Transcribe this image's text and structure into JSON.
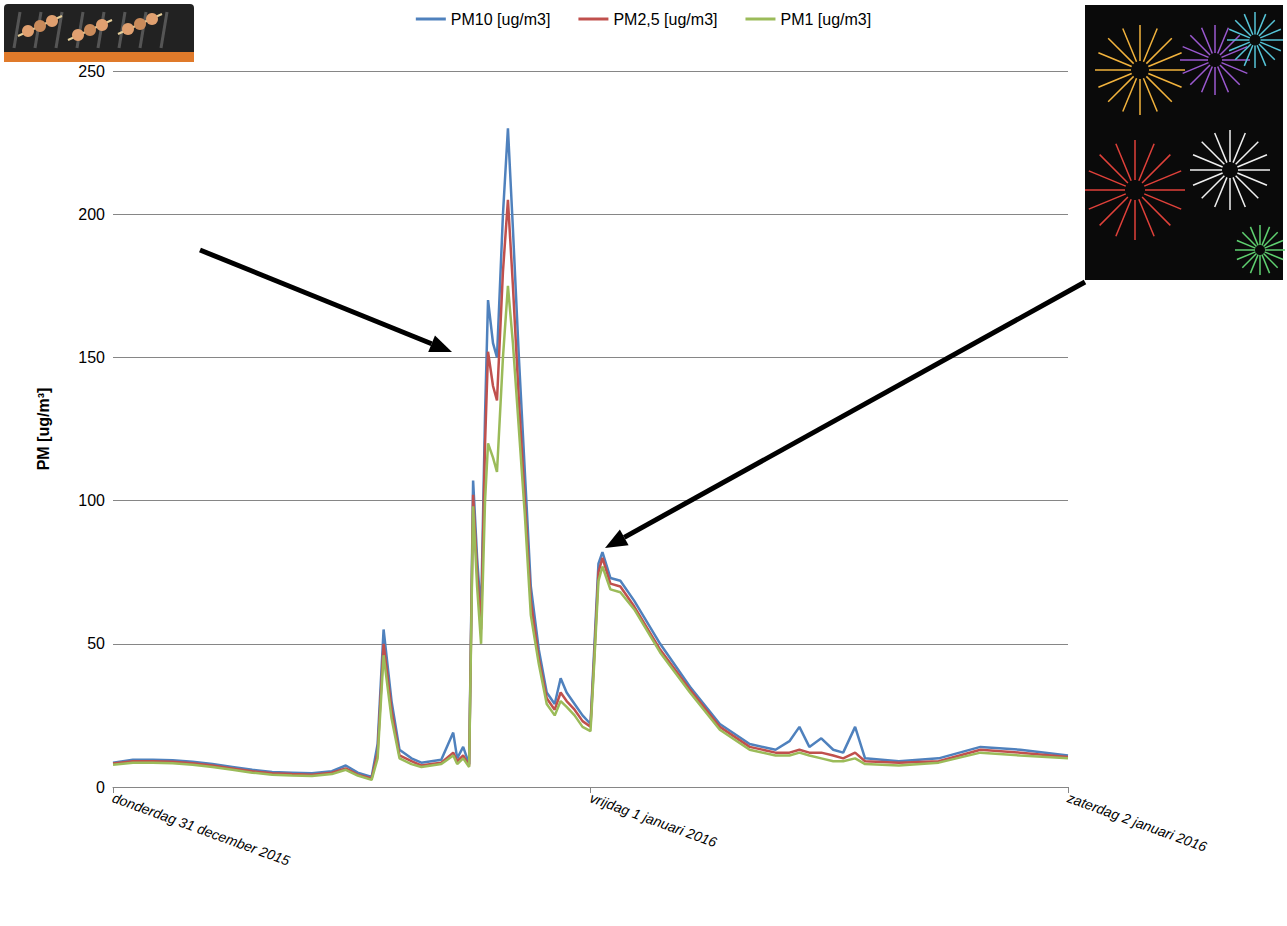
{
  "chart_data": {
    "type": "line",
    "y_label": "PM [ug/m³]",
    "legend": "top",
    "grid": true,
    "x": [
      0,
      1,
      2,
      3,
      4,
      5,
      6,
      7,
      8,
      9,
      10,
      11,
      11.7,
      12.3,
      13.0,
      13.3,
      13.6,
      14.0,
      14.4,
      15,
      15.5,
      16,
      16.5,
      17.1,
      17.3,
      17.6,
      17.9,
      18.1,
      18.3,
      18.5,
      18.7,
      18.85,
      19.1,
      19.3,
      19.6,
      19.85,
      20.1,
      20.4,
      20.7,
      21.0,
      21.4,
      21.8,
      22.2,
      22.5,
      22.8,
      23.2,
      23.6,
      24.0,
      24.2,
      24.4,
      24.6,
      25.0,
      25.5,
      26.2,
      27.5,
      29,
      30.5,
      32,
      33.3,
      34,
      34.5,
      35,
      35.6,
      36.2,
      36.7,
      37.3,
      37.8,
      39.5,
      41.5,
      43.6,
      45.6,
      48
    ],
    "xlim": [
      0,
      48
    ],
    "xticks": [
      {
        "value": 0,
        "label": "donderdag 31 december 2015"
      },
      {
        "value": 24,
        "label": "vrijdag 1 januari 2016"
      },
      {
        "value": 48,
        "label": "zaterdag 2 januari 2016"
      }
    ],
    "ylim": [
      0,
      250
    ],
    "yticks": [
      0,
      50,
      100,
      150,
      200,
      250
    ],
    "series": [
      {
        "name": "PM10 [ug/m3]",
        "color": "#4f81bd",
        "values": [
          8.5,
          9.5,
          9.5,
          9.3,
          8.8,
          8,
          7,
          6,
          5.2,
          5,
          4.8,
          5.5,
          7.5,
          5,
          3.5,
          15,
          55,
          30,
          13,
          10,
          8.5,
          9,
          9.5,
          19,
          10,
          14,
          8,
          107,
          80,
          60,
          130,
          170,
          155,
          150,
          200,
          230,
          195,
          150,
          110,
          70,
          48,
          33,
          29,
          38,
          33,
          29,
          25,
          22,
          50,
          78,
          82,
          73,
          72,
          65,
          50,
          35,
          22,
          15,
          13,
          16,
          21,
          14,
          17,
          13,
          12,
          21,
          10,
          9,
          10,
          14,
          13,
          11
        ]
      },
      {
        "name": "PM2,5 [ug/m3]",
        "color": "#c0504d",
        "values": [
          8.2,
          9,
          9,
          8.8,
          8.3,
          7.5,
          6.5,
          5.5,
          4.8,
          4.5,
          4.3,
          5,
          6.5,
          4.3,
          3,
          12,
          50,
          27,
          11,
          9,
          7.5,
          8,
          8.5,
          12,
          9,
          11,
          7.5,
          102,
          75,
          55,
          120,
          152,
          140,
          135,
          180,
          205,
          175,
          135,
          100,
          65,
          45,
          31,
          27,
          33,
          30,
          27,
          23,
          21,
          47,
          75,
          80,
          71,
          70,
          63,
          48,
          34,
          21,
          14,
          12,
          12,
          13,
          12,
          12,
          11,
          10,
          12,
          9,
          8.5,
          9,
          13,
          12,
          10.5
        ]
      },
      {
        "name": "PM1 [ug/m3]",
        "color": "#9bbb59",
        "values": [
          7.8,
          8.5,
          8.5,
          8.3,
          7.8,
          7,
          6,
          5,
          4.3,
          4,
          3.8,
          4.5,
          6,
          4,
          2.5,
          10,
          46,
          24,
          10,
          8,
          7,
          7.5,
          8,
          11,
          8,
          10,
          7,
          98,
          70,
          50,
          100,
          120,
          115,
          110,
          150,
          175,
          155,
          125,
          95,
          60,
          43,
          29,
          25,
          30,
          28,
          25,
          21,
          19.5,
          45,
          72,
          77,
          69,
          68,
          62,
          47,
          33,
          20,
          13,
          11,
          11,
          12,
          11,
          10,
          9,
          9,
          10,
          8,
          7.5,
          8.5,
          12,
          11,
          10
        ]
      }
    ]
  }
}
